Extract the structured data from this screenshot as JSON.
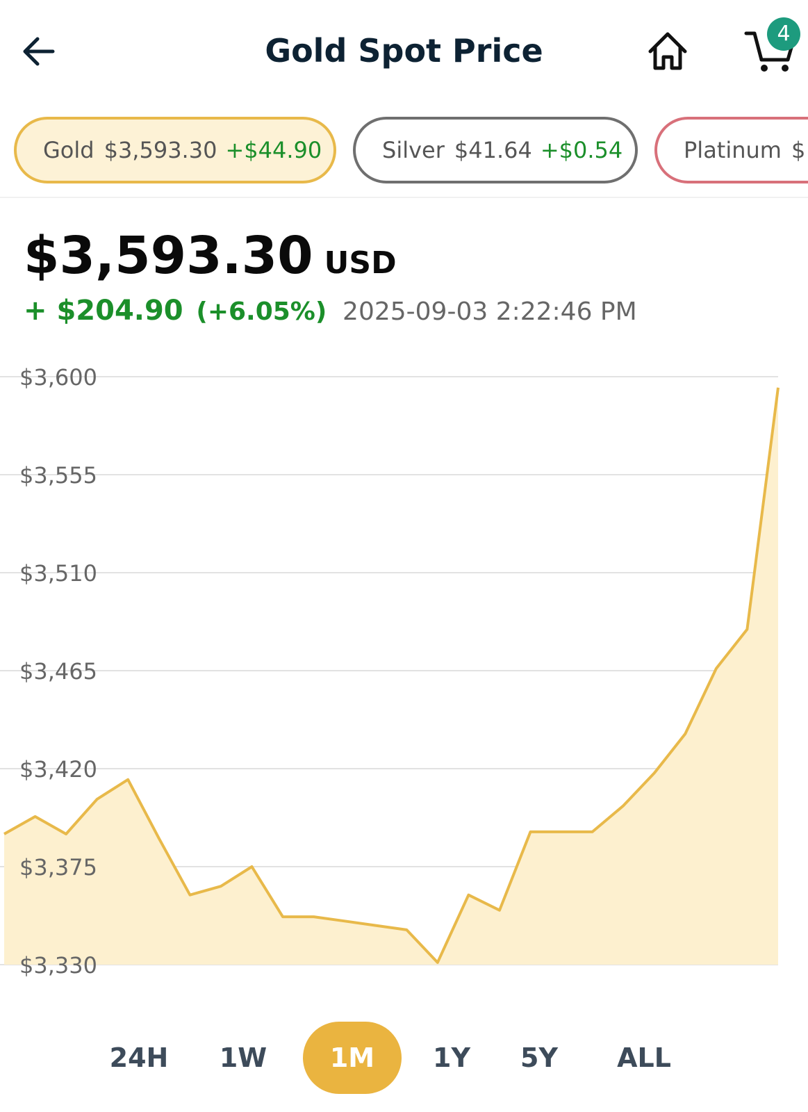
{
  "header": {
    "title": "Gold Spot Price",
    "back_icon": "arrow-left-icon",
    "home_icon": "home-icon",
    "cart_icon": "cart-icon",
    "cart_count": "4"
  },
  "metals": [
    {
      "name": "Gold",
      "price": "$3,593.30",
      "change": "+$44.90",
      "selected": true
    },
    {
      "name": "Silver",
      "price": "$41.64",
      "change": "+$0.54",
      "selected": false
    },
    {
      "name": "Platinum",
      "price": "$",
      "change": "",
      "selected": false
    }
  ],
  "quote": {
    "price": "$3,593.30",
    "currency": "USD",
    "change": "+ $204.90",
    "change_pct": "(+6.05%)",
    "timestamp": "2025-09-03 2:22:46 PM"
  },
  "colors": {
    "accent": "#eab440",
    "line": "#e8b94a",
    "fill": "#fdf0cf",
    "positive": "#1b8f2a"
  },
  "chart_data": {
    "type": "area",
    "ylim": [
      3330,
      3600
    ],
    "yticks": [
      "$3,600",
      "$3,555",
      "$3,510",
      "$3,465",
      "$3,420",
      "$3,375",
      "$3,330"
    ],
    "yticks_values": [
      3600,
      3555,
      3510,
      3465,
      3420,
      3375,
      3330
    ],
    "grid": true,
    "series": [
      {
        "values": [
          3390,
          3398,
          3390,
          3406,
          3415,
          3388,
          3362,
          3366,
          3375,
          3352,
          3352,
          3350,
          3348,
          3346,
          3331,
          3362,
          3355,
          3391,
          3391,
          3391,
          3403,
          3418,
          3436,
          3466,
          3484,
          3595
        ]
      }
    ]
  },
  "ranges": {
    "items": [
      "24H",
      "1W",
      "1M",
      "1Y",
      "5Y",
      "ALL"
    ],
    "active": "1M"
  }
}
